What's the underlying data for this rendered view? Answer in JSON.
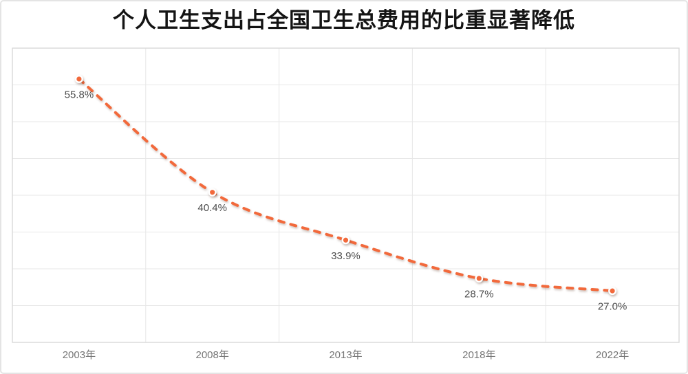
{
  "card": {
    "background": "#ffffff",
    "border_color": "#e4e4e4"
  },
  "chart_data": {
    "type": "line",
    "title": "个人卫生支出占全国卫生总费用的比重显著降低",
    "categories": [
      "2003年",
      "2008年",
      "2013年",
      "2018年",
      "2022年"
    ],
    "values": [
      55.8,
      40.4,
      33.9,
      28.7,
      27.0
    ],
    "data_labels": [
      "55.8%",
      "40.4%",
      "33.9%",
      "28.7%",
      "27.0%"
    ],
    "xlabel": "",
    "ylabel": "",
    "ylim": [
      20,
      60
    ],
    "y_major_unit": 5,
    "grid": true,
    "legend": "none",
    "smooth": true,
    "line_style": "dashed",
    "colors": {
      "line": "#f2693b",
      "marker_fill": "#f2693b",
      "marker_ring": "#ffffff",
      "gridline": "#e7e7e7",
      "plot_border": "#d9d9d9",
      "data_label": "#4d4d4d",
      "axis_label": "#757575",
      "title": "#141414"
    }
  }
}
